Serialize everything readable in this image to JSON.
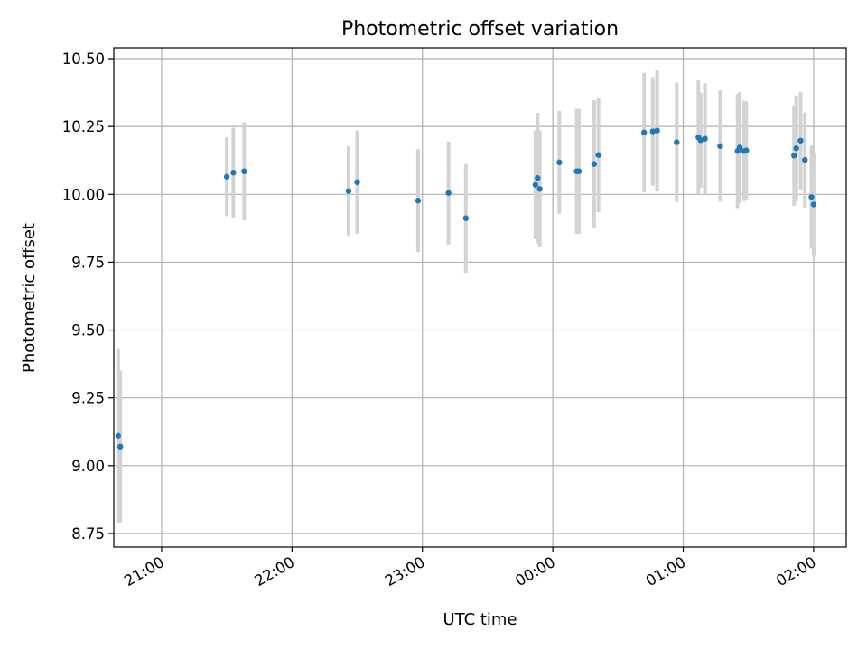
{
  "chart_data": {
    "type": "scatter",
    "title": "Photometric offset variation",
    "xlabel": "UTC time",
    "ylabel": "Photometric offset",
    "x_axis_type": "time",
    "xlim": [
      "20:38",
      "02:15"
    ],
    "ylim": [
      8.7,
      10.54
    ],
    "grid": true,
    "legend": "none",
    "x_ticks": [
      "21:00",
      "22:00",
      "23:00",
      "00:00",
      "01:00",
      "02:00"
    ],
    "y_ticks": [
      "8.75",
      "9.00",
      "9.25",
      "9.50",
      "9.75",
      "10.00",
      "10.25",
      "10.50"
    ],
    "point_color": "#1f77b4",
    "error_color": "#d3d3d3",
    "points": [
      {
        "x": "20:40",
        "y": 9.11,
        "err": 0.32
      },
      {
        "x": "20:41",
        "y": 9.07,
        "err": 0.28
      },
      {
        "x": "21:30",
        "y": 10.065,
        "err": 0.145
      },
      {
        "x": "21:33",
        "y": 10.08,
        "err": 0.165
      },
      {
        "x": "21:38",
        "y": 10.085,
        "err": 0.18
      },
      {
        "x": "22:26",
        "y": 10.012,
        "err": 0.165
      },
      {
        "x": "22:30",
        "y": 10.045,
        "err": 0.19
      },
      {
        "x": "22:58",
        "y": 9.977,
        "err": 0.19
      },
      {
        "x": "23:12",
        "y": 10.005,
        "err": 0.19
      },
      {
        "x": "23:20",
        "y": 9.912,
        "err": 0.2
      },
      {
        "x": "23:52",
        "y": 10.035,
        "err": 0.2
      },
      {
        "x": "23:53",
        "y": 10.06,
        "err": 0.24
      },
      {
        "x": "23:54",
        "y": 10.02,
        "err": 0.215
      },
      {
        "x": "00:03",
        "y": 10.118,
        "err": 0.19
      },
      {
        "x": "00:11",
        "y": 10.085,
        "err": 0.23
      },
      {
        "x": "00:12",
        "y": 10.085,
        "err": 0.23
      },
      {
        "x": "00:19",
        "y": 10.112,
        "err": 0.235
      },
      {
        "x": "00:21",
        "y": 10.145,
        "err": 0.21
      },
      {
        "x": "00:42",
        "y": 10.228,
        "err": 0.22
      },
      {
        "x": "00:46",
        "y": 10.232,
        "err": 0.2
      },
      {
        "x": "00:48",
        "y": 10.235,
        "err": 0.225
      },
      {
        "x": "00:57",
        "y": 10.192,
        "err": 0.22
      },
      {
        "x": "01:07",
        "y": 10.21,
        "err": 0.21
      },
      {
        "x": "01:08",
        "y": 10.2,
        "err": 0.175
      },
      {
        "x": "01:10",
        "y": 10.205,
        "err": 0.205
      },
      {
        "x": "01:17",
        "y": 10.178,
        "err": 0.205
      },
      {
        "x": "01:25",
        "y": 10.16,
        "err": 0.21
      },
      {
        "x": "01:26",
        "y": 10.173,
        "err": 0.205
      },
      {
        "x": "01:28",
        "y": 10.16,
        "err": 0.185
      },
      {
        "x": "01:29",
        "y": 10.162,
        "err": 0.18
      },
      {
        "x": "01:51",
        "y": 10.143,
        "err": 0.185
      },
      {
        "x": "01:52",
        "y": 10.17,
        "err": 0.195
      },
      {
        "x": "01:54",
        "y": 10.198,
        "err": 0.18
      },
      {
        "x": "01:56",
        "y": 10.127,
        "err": 0.175
      },
      {
        "x": "01:59",
        "y": 9.99,
        "err": 0.19
      },
      {
        "x": "02:00",
        "y": 9.963,
        "err": 0.19
      }
    ]
  }
}
